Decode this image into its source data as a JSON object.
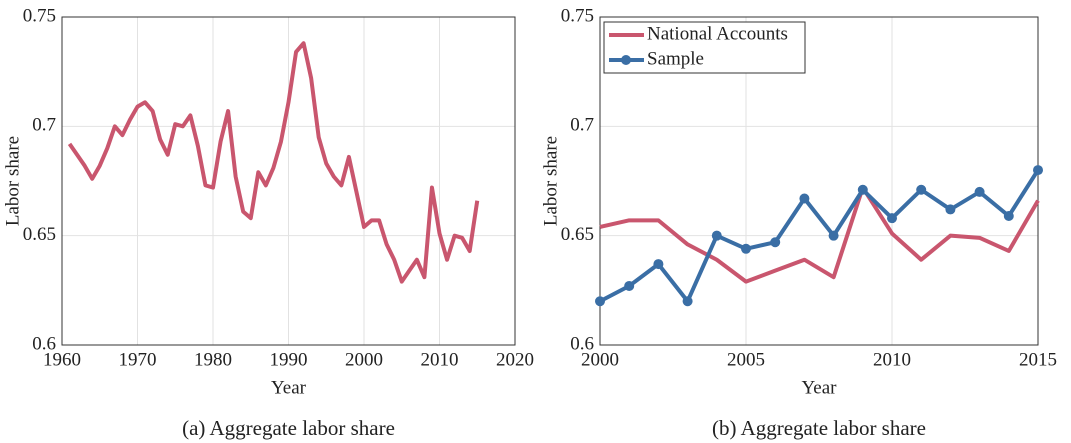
{
  "chart_data": [
    {
      "type": "line",
      "caption": "(a) Aggregate labor share",
      "xlabel": "Year",
      "ylabel": "Labor share",
      "x": [
        1961,
        1962,
        1963,
        1964,
        1965,
        1966,
        1967,
        1968,
        1969,
        1970,
        1971,
        1972,
        1973,
        1974,
        1975,
        1976,
        1977,
        1978,
        1979,
        1980,
        1981,
        1982,
        1983,
        1984,
        1985,
        1986,
        1987,
        1988,
        1989,
        1990,
        1991,
        1992,
        1993,
        1994,
        1995,
        1996,
        1997,
        1998,
        1999,
        2000,
        2001,
        2002,
        2003,
        2004,
        2005,
        2006,
        2007,
        2008,
        2009,
        2010,
        2011,
        2012,
        2013,
        2014,
        2015
      ],
      "values": [
        0.692,
        0.687,
        0.682,
        0.676,
        0.682,
        0.69,
        0.7,
        0.696,
        0.703,
        0.709,
        0.711,
        0.707,
        0.694,
        0.687,
        0.701,
        0.7,
        0.705,
        0.691,
        0.673,
        0.672,
        0.693,
        0.707,
        0.677,
        0.661,
        0.658,
        0.679,
        0.673,
        0.681,
        0.693,
        0.711,
        0.734,
        0.738,
        0.722,
        0.695,
        0.683,
        0.677,
        0.673,
        0.686,
        0.67,
        0.654,
        0.657,
        0.657,
        0.646,
        0.639,
        0.629,
        0.634,
        0.639,
        0.631,
        0.672,
        0.651,
        0.639,
        0.65,
        0.649,
        0.643,
        0.666
      ],
      "color": "#c9566e",
      "xlim": [
        1960,
        2020
      ],
      "xticks": [
        1960,
        1970,
        1980,
        1990,
        2000,
        2010,
        2020
      ],
      "ylim": [
        0.6,
        0.75
      ],
      "yticks": [
        0.6,
        0.65,
        0.7,
        0.75
      ],
      "grid": true
    },
    {
      "type": "line",
      "caption": "(b) Aggregate labor share",
      "xlabel": "Year",
      "ylabel": "Labor share",
      "x": [
        2000,
        2001,
        2002,
        2003,
        2004,
        2005,
        2006,
        2007,
        2008,
        2009,
        2010,
        2011,
        2012,
        2013,
        2014,
        2015
      ],
      "series": [
        {
          "name": "National Accounts",
          "color": "#c9566e",
          "values": [
            0.654,
            0.657,
            0.657,
            0.646,
            0.639,
            0.629,
            0.634,
            0.639,
            0.631,
            0.672,
            0.651,
            0.639,
            0.65,
            0.649,
            0.643,
            0.666
          ]
        },
        {
          "name": "Sample",
          "color": "#3a6ea5",
          "marker": "circle",
          "values": [
            0.62,
            0.627,
            0.637,
            0.62,
            0.65,
            0.644,
            0.647,
            0.667,
            0.65,
            0.671,
            0.658,
            0.671,
            0.662,
            0.67,
            0.659,
            0.68
          ]
        }
      ],
      "xlim": [
        2000,
        2015
      ],
      "xticks": [
        2000,
        2005,
        2010,
        2015
      ],
      "ylim": [
        0.6,
        0.75
      ],
      "yticks": [
        0.6,
        0.65,
        0.7,
        0.75
      ],
      "grid": true,
      "legend": "upper left"
    }
  ]
}
